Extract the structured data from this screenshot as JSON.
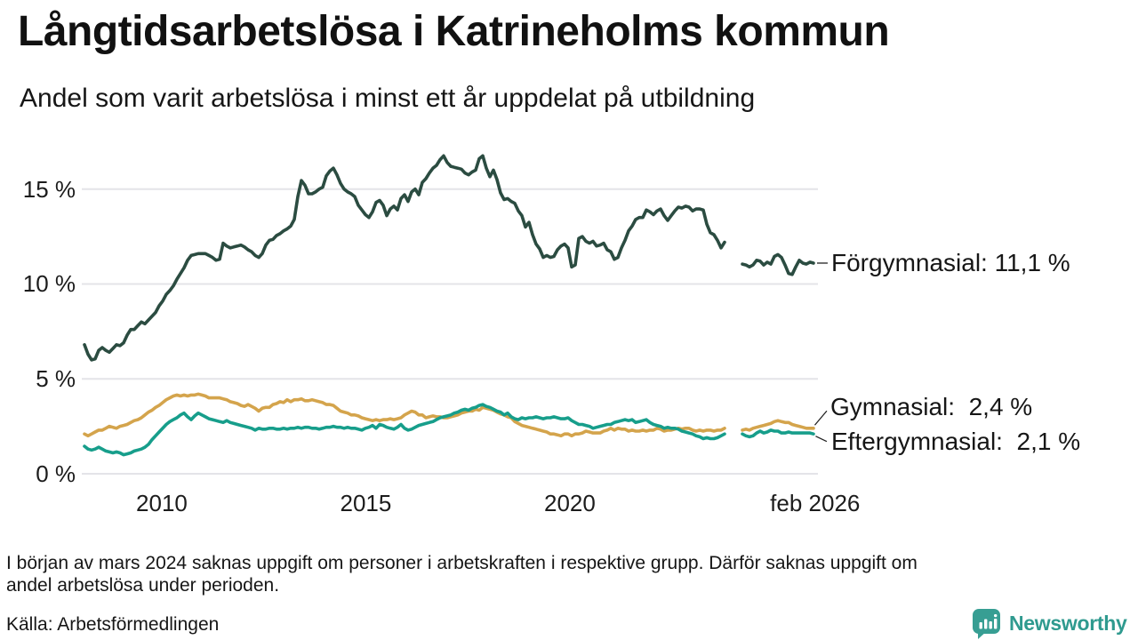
{
  "header": {
    "title": "Långtidsarbetslösa i Katrineholms kommun",
    "subtitle": "Andel som varit arbetslösa i minst ett år uppdelat på utbildning"
  },
  "footer": {
    "note_lines": [
      "I början av mars 2024 saknas uppgift om personer i arbetskraften i respektive grupp. Därför saknas uppgift om",
      "andel arbetslösa under perioden."
    ],
    "source": "Källa: Arbetsförmedlingen"
  },
  "logo": {
    "text": "Newsworthy",
    "color": "#2f9a8f",
    "icon_color": "#379e93",
    "icon": "speech-bubble-bar-chart"
  },
  "colors": {
    "forgymnasial": "#2b4c41",
    "gymnasial": "#d4a44c",
    "eftergymnasial": "#179e8b",
    "gridline": "#e4e4e8",
    "leader_line": "#222222"
  },
  "chart_data": {
    "type": "line",
    "title": "Långtidsarbetslösa i Katrineholms kommun",
    "subtitle": "Andel som varit arbetslösa i minst ett år uppdelat på utbildning",
    "unit": "%",
    "grid": true,
    "legend_position": "end-of-line labels right of chart",
    "x_axis": {
      "range": [
        2008.04,
        2026.08
      ],
      "ticks": [
        {
          "t": 2010,
          "label": "2010"
        },
        {
          "t": 2015,
          "label": "2015"
        },
        {
          "t": 2020,
          "label": "2020"
        },
        {
          "t": 2026.01,
          "label": "feb 2026"
        }
      ]
    },
    "y_axis": {
      "range": [
        0,
        17
      ],
      "ticks": [
        {
          "v": 0,
          "label": "0 %"
        },
        {
          "v": 5,
          "label": "5 %"
        },
        {
          "v": 10,
          "label": "10 %"
        },
        {
          "v": 15,
          "label": "15 %"
        }
      ]
    },
    "missing_data_gap": {
      "from_year": 2023.8,
      "to_year": 2024.23
    },
    "series": [
      {
        "name": "Förgymnasial",
        "color": "#2b4c41",
        "final_value_pct": 11.1,
        "segments": [
          {
            "start_year": 2008.105,
            "step_years": 0.08715,
            "values": [
              6.8,
              6.3,
              6.0,
              6.05,
              6.5,
              6.65,
              6.5,
              6.4,
              6.6,
              6.8,
              6.75,
              6.9,
              7.3,
              7.6,
              7.6,
              7.8,
              8.0,
              7.9,
              8.1,
              8.3,
              8.5,
              8.85,
              9.1,
              9.45,
              9.65,
              9.9,
              10.25,
              10.55,
              10.85,
              11.25,
              11.5,
              11.55,
              11.6,
              11.6,
              11.6,
              11.5,
              11.4,
              11.25,
              11.3,
              12.15,
              12.0,
              11.9,
              11.95,
              12.0,
              12.05,
              11.95,
              11.8,
              11.7,
              11.5,
              11.4,
              11.6,
              12.05,
              12.3,
              12.35,
              12.55,
              12.65,
              12.8,
              12.9,
              13.05,
              13.4,
              14.6,
              15.45,
              15.2,
              14.75,
              14.75,
              14.85,
              15.0,
              15.1,
              15.7,
              15.95,
              16.1,
              15.75,
              15.3,
              15.0,
              14.85,
              14.75,
              14.6,
              14.15,
              13.9,
              13.65,
              13.5,
              13.8,
              14.3,
              14.4,
              14.15,
              13.6,
              13.95,
              14.1,
              13.9,
              14.5,
              14.7,
              14.35,
              14.85,
              15.0,
              14.7,
              15.35,
              15.55,
              15.85,
              16.1,
              16.25,
              16.55,
              16.75,
              16.4,
              16.2,
              16.15,
              16.1,
              16.05,
              15.85,
              15.75,
              15.9,
              16.0,
              16.6,
              16.75,
              16.1,
              15.65,
              16.0,
              15.5,
              14.8,
              14.45,
              14.5,
              14.35,
              14.25,
              13.85,
              13.6,
              13.0,
              13.25,
              12.6,
              12.1,
              11.85,
              11.4,
              11.5,
              11.4,
              11.45,
              11.8,
              12.0,
              12.1,
              11.9,
              10.9,
              11.0,
              12.4,
              12.5,
              12.25,
              12.15,
              12.25,
              12.0,
              12.05,
              12.15,
              11.8,
              11.7,
              11.3,
              11.4,
              11.9,
              12.3,
              12.8,
              13.05,
              13.4,
              13.5,
              13.5,
              13.9,
              13.8,
              13.65,
              13.85,
              13.95,
              13.6,
              13.35,
              13.6,
              13.85,
              14.05,
              14.0,
              14.1,
              14.05,
              13.85,
              13.95,
              13.95,
              13.9,
              13.15,
              12.7,
              12.6,
              12.3,
              11.9,
              12.2
            ]
          },
          {
            "start_year": 2024.227,
            "step_years": 0.08715,
            "values": [
              11.05,
              11.0,
              10.9,
              11.0,
              11.25,
              11.2,
              11.0,
              11.15,
              11.05,
              11.45,
              11.55,
              11.4,
              11.0,
              10.55,
              10.5,
              10.9,
              11.25,
              11.1,
              11.05,
              11.15,
              11.1
            ]
          }
        ]
      },
      {
        "name": "Gymnasial",
        "color": "#d4a44c",
        "final_value_pct": 2.4,
        "segments": [
          {
            "start_year": 2008.105,
            "step_years": 0.08715,
            "values": [
              2.1,
              2.0,
              2.1,
              2.2,
              2.3,
              2.3,
              2.4,
              2.5,
              2.45,
              2.4,
              2.5,
              2.55,
              2.6,
              2.7,
              2.8,
              2.85,
              2.95,
              3.1,
              3.25,
              3.35,
              3.5,
              3.6,
              3.75,
              3.9,
              4.0,
              4.1,
              4.15,
              4.1,
              4.15,
              4.1,
              4.15,
              4.15,
              4.2,
              4.15,
              4.1,
              4.0,
              4.0,
              4.0,
              4.0,
              3.95,
              3.9,
              3.8,
              3.75,
              3.7,
              3.6,
              3.55,
              3.65,
              3.55,
              3.45,
              3.3,
              3.45,
              3.5,
              3.5,
              3.65,
              3.7,
              3.8,
              3.75,
              3.9,
              3.8,
              3.9,
              3.9,
              3.95,
              3.85,
              3.85,
              3.9,
              3.85,
              3.8,
              3.75,
              3.65,
              3.65,
              3.6,
              3.45,
              3.3,
              3.25,
              3.2,
              3.1,
              3.1,
              3.05,
              2.95,
              2.9,
              2.85,
              2.8,
              2.85,
              2.8,
              2.85,
              2.85,
              2.9,
              2.85,
              2.9,
              2.95,
              3.1,
              3.2,
              3.3,
              3.25,
              3.1,
              3.1,
              2.95,
              3.0,
              3.05,
              3.0,
              3.0,
              2.95,
              2.95,
              3.0,
              3.05,
              3.1,
              3.2,
              3.25,
              3.3,
              3.3,
              3.4,
              3.35,
              3.5,
              3.45,
              3.4,
              3.35,
              3.25,
              3.15,
              3.1,
              3.0,
              2.95,
              2.75,
              2.65,
              2.55,
              2.5,
              2.45,
              2.4,
              2.35,
              2.3,
              2.25,
              2.2,
              2.1,
              2.1,
              2.05,
              2.0,
              2.1,
              2.1,
              2.0,
              2.1,
              2.1,
              2.15,
              2.25,
              2.2,
              2.15,
              2.15,
              2.15,
              2.25,
              2.3,
              2.4,
              2.3,
              2.4,
              2.35,
              2.35,
              2.25,
              2.3,
              2.25,
              2.25,
              2.3,
              2.25,
              2.3,
              2.3,
              2.4,
              2.35,
              2.25,
              2.3,
              2.3,
              2.35,
              2.4,
              2.35,
              2.4,
              2.4,
              2.3,
              2.25,
              2.3,
              2.25,
              2.3,
              2.3,
              2.25,
              2.3,
              2.3,
              2.4
            ]
          },
          {
            "start_year": 2024.227,
            "step_years": 0.08715,
            "values": [
              2.3,
              2.35,
              2.3,
              2.4,
              2.45,
              2.5,
              2.55,
              2.6,
              2.65,
              2.75,
              2.8,
              2.75,
              2.7,
              2.7,
              2.6,
              2.55,
              2.5,
              2.45,
              2.4,
              2.4,
              2.4
            ]
          }
        ]
      },
      {
        "name": "Eftergymnasial",
        "color": "#179e8b",
        "final_value_pct": 2.1,
        "segments": [
          {
            "start_year": 2008.105,
            "step_years": 0.08715,
            "values": [
              1.45,
              1.3,
              1.25,
              1.3,
              1.4,
              1.3,
              1.2,
              1.15,
              1.1,
              1.15,
              1.1,
              1.0,
              1.05,
              1.1,
              1.2,
              1.25,
              1.3,
              1.4,
              1.55,
              1.8,
              2.0,
              2.2,
              2.4,
              2.6,
              2.75,
              2.85,
              2.95,
              3.1,
              3.2,
              3.0,
              2.85,
              3.05,
              3.2,
              3.1,
              3.0,
              2.9,
              2.85,
              2.8,
              2.75,
              2.7,
              2.8,
              2.7,
              2.65,
              2.6,
              2.55,
              2.5,
              2.45,
              2.4,
              2.3,
              2.4,
              2.35,
              2.35,
              2.4,
              2.4,
              2.35,
              2.35,
              2.4,
              2.35,
              2.4,
              2.4,
              2.45,
              2.4,
              2.45,
              2.45,
              2.4,
              2.4,
              2.35,
              2.4,
              2.45,
              2.45,
              2.5,
              2.45,
              2.45,
              2.4,
              2.45,
              2.4,
              2.4,
              2.35,
              2.3,
              2.4,
              2.45,
              2.55,
              2.4,
              2.6,
              2.55,
              2.45,
              2.4,
              2.35,
              2.45,
              2.6,
              2.4,
              2.3,
              2.35,
              2.45,
              2.55,
              2.6,
              2.65,
              2.7,
              2.75,
              2.85,
              2.95,
              3.0,
              3.05,
              3.1,
              3.2,
              3.25,
              3.35,
              3.4,
              3.35,
              3.45,
              3.5,
              3.6,
              3.65,
              3.55,
              3.5,
              3.4,
              3.3,
              3.25,
              3.1,
              3.2,
              3.0,
              2.9,
              2.85,
              2.95,
              2.9,
              2.95,
              2.95,
              3.0,
              2.95,
              2.9,
              2.95,
              2.95,
              3.0,
              2.95,
              2.9,
              2.9,
              2.95,
              2.8,
              2.7,
              2.6,
              2.6,
              2.55,
              2.5,
              2.4,
              2.45,
              2.5,
              2.55,
              2.6,
              2.6,
              2.7,
              2.75,
              2.8,
              2.85,
              2.8,
              2.85,
              2.7,
              2.75,
              2.8,
              2.85,
              2.7,
              2.6,
              2.55,
              2.5,
              2.4,
              2.45,
              2.4,
              2.4,
              2.35,
              2.25,
              2.2,
              2.15,
              2.1,
              2.0,
              1.95,
              1.85,
              1.9,
              1.85,
              1.85,
              1.9,
              2.0,
              2.1
            ]
          },
          {
            "start_year": 2024.227,
            "step_years": 0.08715,
            "values": [
              2.1,
              2.0,
              1.95,
              2.0,
              2.15,
              2.25,
              2.15,
              2.2,
              2.3,
              2.25,
              2.25,
              2.15,
              2.15,
              2.2,
              2.15,
              2.15,
              2.15,
              2.15,
              2.15,
              2.15,
              2.1
            ]
          }
        ]
      }
    ],
    "annotations": [
      {
        "series": "Förgymnasial",
        "label": "Förgymnasial: 11,1 %"
      },
      {
        "series": "Gymnasial",
        "label": "Gymnasial:  2,4 %"
      },
      {
        "series": "Eftergymnasial",
        "label": "Eftergymnasial:  2,1 %"
      }
    ]
  }
}
